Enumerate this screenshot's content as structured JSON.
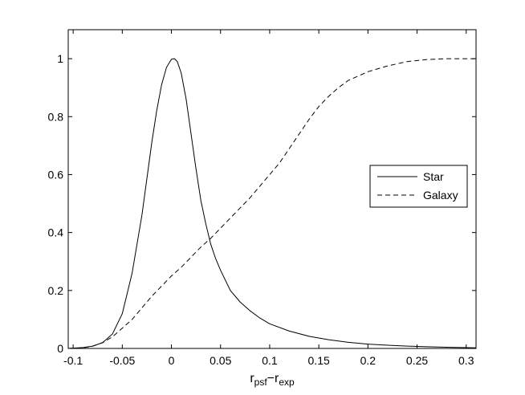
{
  "chart_data": {
    "type": "line",
    "title": "",
    "xlabel": {
      "main1": "r",
      "sub1": "psf",
      "dash": "−",
      "main2": "r",
      "sub2": "exp"
    },
    "ylabel": "",
    "xlim": [
      -0.105,
      0.31
    ],
    "ylim": [
      0,
      1.1
    ],
    "xticks": [
      -0.1,
      -0.05,
      0,
      0.05,
      0.1,
      0.15,
      0.2,
      0.25,
      0.3
    ],
    "xtick_labels": [
      "-0.1",
      "-0.05",
      "0",
      "0.05",
      "0.1",
      "0.15",
      "0.2",
      "0.25",
      "0.3"
    ],
    "yticks": [
      0,
      0.2,
      0.4,
      0.6,
      0.8,
      1
    ],
    "ytick_labels": [
      "0",
      "0.2",
      "0.4",
      "0.6",
      "0.8",
      "1"
    ],
    "grid": false,
    "legend": {
      "position": "right",
      "entries": [
        "Star",
        "Galaxy"
      ]
    },
    "series": [
      {
        "name": "Star",
        "style": "solid",
        "color": "#000000",
        "x": [
          -0.105,
          -0.09,
          -0.08,
          -0.07,
          -0.06,
          -0.05,
          -0.04,
          -0.03,
          -0.02,
          -0.015,
          -0.01,
          -0.005,
          0,
          0.003,
          0.006,
          0.01,
          0.015,
          0.02,
          0.025,
          0.03,
          0.035,
          0.04,
          0.045,
          0.05,
          0.06,
          0.07,
          0.08,
          0.09,
          0.1,
          0.12,
          0.14,
          0.16,
          0.18,
          0.2,
          0.22,
          0.24,
          0.26,
          0.28,
          0.31
        ],
        "y": [
          0.0,
          0.003,
          0.008,
          0.02,
          0.05,
          0.12,
          0.26,
          0.46,
          0.71,
          0.82,
          0.91,
          0.97,
          0.998,
          1.0,
          0.99,
          0.95,
          0.86,
          0.74,
          0.62,
          0.51,
          0.43,
          0.36,
          0.31,
          0.27,
          0.2,
          0.16,
          0.13,
          0.105,
          0.085,
          0.06,
          0.042,
          0.03,
          0.021,
          0.015,
          0.011,
          0.008,
          0.006,
          0.004,
          0.002
        ]
      },
      {
        "name": "Galaxy",
        "style": "dashed",
        "color": "#000000",
        "x": [
          -0.105,
          -0.09,
          -0.08,
          -0.07,
          -0.06,
          -0.05,
          -0.04,
          -0.03,
          -0.02,
          -0.01,
          0,
          0.01,
          0.02,
          0.03,
          0.04,
          0.05,
          0.06,
          0.07,
          0.08,
          0.09,
          0.1,
          0.11,
          0.12,
          0.13,
          0.14,
          0.15,
          0.16,
          0.17,
          0.18,
          0.19,
          0.2,
          0.22,
          0.24,
          0.26,
          0.28,
          0.3,
          0.31
        ],
        "y": [
          0.0,
          0.002,
          0.008,
          0.02,
          0.04,
          0.07,
          0.1,
          0.14,
          0.18,
          0.215,
          0.25,
          0.28,
          0.315,
          0.35,
          0.38,
          0.415,
          0.45,
          0.485,
          0.52,
          0.56,
          0.6,
          0.64,
          0.69,
          0.74,
          0.79,
          0.835,
          0.87,
          0.9,
          0.925,
          0.94,
          0.955,
          0.975,
          0.99,
          0.997,
          1.0,
          1.0,
          1.0
        ]
      }
    ]
  }
}
